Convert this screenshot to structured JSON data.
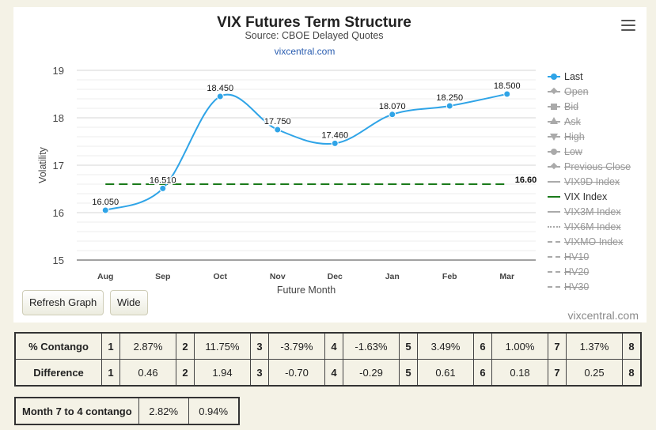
{
  "chart_data": {
    "type": "line",
    "title": "VIX Futures Term Structure",
    "subtitle": "Source: CBOE Delayed Quotes",
    "source_link": "vixcentral.com",
    "xlabel": "Future Month",
    "ylabel": "Volatility",
    "categories": [
      "Aug",
      "Sep",
      "Oct",
      "Nov",
      "Dec",
      "Jan",
      "Feb",
      "Mar"
    ],
    "series": [
      {
        "name": "Last",
        "values": [
          16.05,
          16.51,
          18.45,
          17.75,
          17.46,
          18.07,
          18.25,
          18.5
        ],
        "labels": [
          "16.050",
          "16.510",
          "18.450",
          "17.750",
          "17.460",
          "18.070",
          "18.250",
          "18.500"
        ],
        "color": "#2fa4e7"
      },
      {
        "name": "VIX Index",
        "values": [
          16.6,
          16.6,
          16.6,
          16.6,
          16.6,
          16.6,
          16.6,
          16.6
        ],
        "end_label": "16.60",
        "color": "#1a7a1a"
      }
    ],
    "ylim": [
      15,
      19
    ],
    "yticks": [
      15,
      16,
      17,
      18,
      19
    ],
    "legend_position": "right"
  },
  "legend": [
    {
      "label": "Last",
      "active": true,
      "symbol": "circle-line",
      "color": "#2fa4e7"
    },
    {
      "label": "Open",
      "active": false,
      "symbol": "diamond-line"
    },
    {
      "label": "Bid",
      "active": false,
      "symbol": "square-line"
    },
    {
      "label": "Ask",
      "active": false,
      "symbol": "triangle-line"
    },
    {
      "label": "High",
      "active": false,
      "symbol": "triangle-down-line"
    },
    {
      "label": "Low",
      "active": false,
      "symbol": "circle-line"
    },
    {
      "label": "Previous Close",
      "active": false,
      "symbol": "diamond-line"
    },
    {
      "label": "VIX9D Index",
      "active": false,
      "symbol": "solid"
    },
    {
      "label": "VIX Index",
      "active": true,
      "symbol": "solid",
      "color": "#1a7a1a"
    },
    {
      "label": "VIX3M Index",
      "active": false,
      "symbol": "solid"
    },
    {
      "label": "VIX6M Index",
      "active": false,
      "symbol": "dotted"
    },
    {
      "label": "VIXMO Index",
      "active": false,
      "symbol": "dashdot"
    },
    {
      "label": "HV10",
      "active": false,
      "symbol": "dashdot"
    },
    {
      "label": "HV20",
      "active": false,
      "symbol": "dashdot"
    },
    {
      "label": "HV30",
      "active": false,
      "symbol": "dashdot"
    }
  ],
  "buttons": {
    "refresh": "Refresh Graph",
    "wide": "Wide"
  },
  "credit": "vixcentral.com",
  "contango_table": {
    "rows": [
      {
        "header": "% Contango",
        "cells": [
          [
            "1",
            "2.87%"
          ],
          [
            "2",
            "11.75%"
          ],
          [
            "3",
            "-3.79%"
          ],
          [
            "4",
            "-1.63%"
          ],
          [
            "5",
            "3.49%"
          ],
          [
            "6",
            "1.00%"
          ],
          [
            "7",
            "1.37%"
          ],
          [
            "8",
            ""
          ]
        ]
      },
      {
        "header": "Difference",
        "cells": [
          [
            "1",
            "0.46"
          ],
          [
            "2",
            "1.94"
          ],
          [
            "3",
            "-0.70"
          ],
          [
            "4",
            "-0.29"
          ],
          [
            "5",
            "0.61"
          ],
          [
            "6",
            "0.18"
          ],
          [
            "7",
            "0.25"
          ],
          [
            "8",
            ""
          ]
        ]
      }
    ]
  },
  "month_table": {
    "header": "Month 7 to 4 contango",
    "values": [
      "2.82%",
      "0.94%"
    ]
  }
}
